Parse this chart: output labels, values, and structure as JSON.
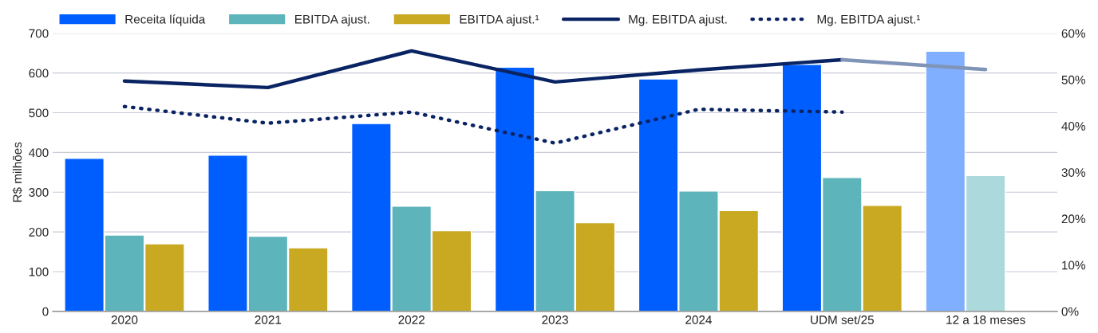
{
  "chart_data": {
    "type": "bar",
    "ylabel": "R$ milhões",
    "categories": [
      "2020",
      "2021",
      "2022",
      "2023",
      "2024",
      "UDM set/25",
      "12 a 18 meses"
    ],
    "series": [
      {
        "name": "Receita líquida",
        "color": "#005eff",
        "colors": [
          "#005eff",
          "#005eff",
          "#005eff",
          "#005eff",
          "#005eff",
          "#005eff",
          "#80afff"
        ],
        "values": [
          385,
          393,
          473,
          615,
          585,
          622,
          655
        ]
      },
      {
        "name": "EBITDA ajust.",
        "color": "#5db4bb",
        "colors": [
          "#5db4bb",
          "#5db4bb",
          "#5db4bb",
          "#5db4bb",
          "#5db4bb",
          "#5db4bb",
          "#acd9dc"
        ],
        "values": [
          192,
          189,
          265,
          304,
          303,
          337,
          342
        ]
      },
      {
        "name": "EBITDA ajust.¹",
        "color": "#c9a922",
        "values": [
          170,
          160,
          203,
          223,
          254,
          267,
          null
        ]
      },
      {
        "name": "Mg. EBITDA ajust.",
        "type": "line",
        "axis": "y2",
        "color": "#0a2463",
        "line_style": "solid",
        "values": [
          49.7,
          48.3,
          56.2,
          49.5,
          52.1,
          54.3,
          null
        ]
      },
      {
        "type": "line",
        "axis": "y2",
        "color": "#8094b8",
        "line_style": "solid",
        "values": [
          null,
          null,
          null,
          null,
          null,
          54.3,
          52.2
        ]
      },
      {
        "name": "Mg. EBITDA ajust.¹",
        "type": "line",
        "axis": "y2",
        "color": "#0a2463",
        "line_style": "dotted",
        "values": [
          44.2,
          40.6,
          43.0,
          36.3,
          43.6,
          43.0,
          null
        ]
      }
    ],
    "ylim": [
      0,
      700
    ],
    "yticks": [
      0,
      100,
      200,
      300,
      400,
      500,
      600,
      700
    ],
    "y2lim": [
      0,
      60
    ],
    "y2ticks": [
      {
        "value": 0,
        "label": "0%"
      },
      {
        "value": 10,
        "label": "10%"
      },
      {
        "value": 20,
        "label": "20%"
      },
      {
        "value": 30,
        "label": "30%"
      },
      {
        "value": 40,
        "label": "40%"
      },
      {
        "value": 50,
        "label": "50%"
      },
      {
        "value": 60,
        "label": "60%"
      }
    ],
    "grid": "y",
    "legend": "top",
    "marker": "none"
  }
}
